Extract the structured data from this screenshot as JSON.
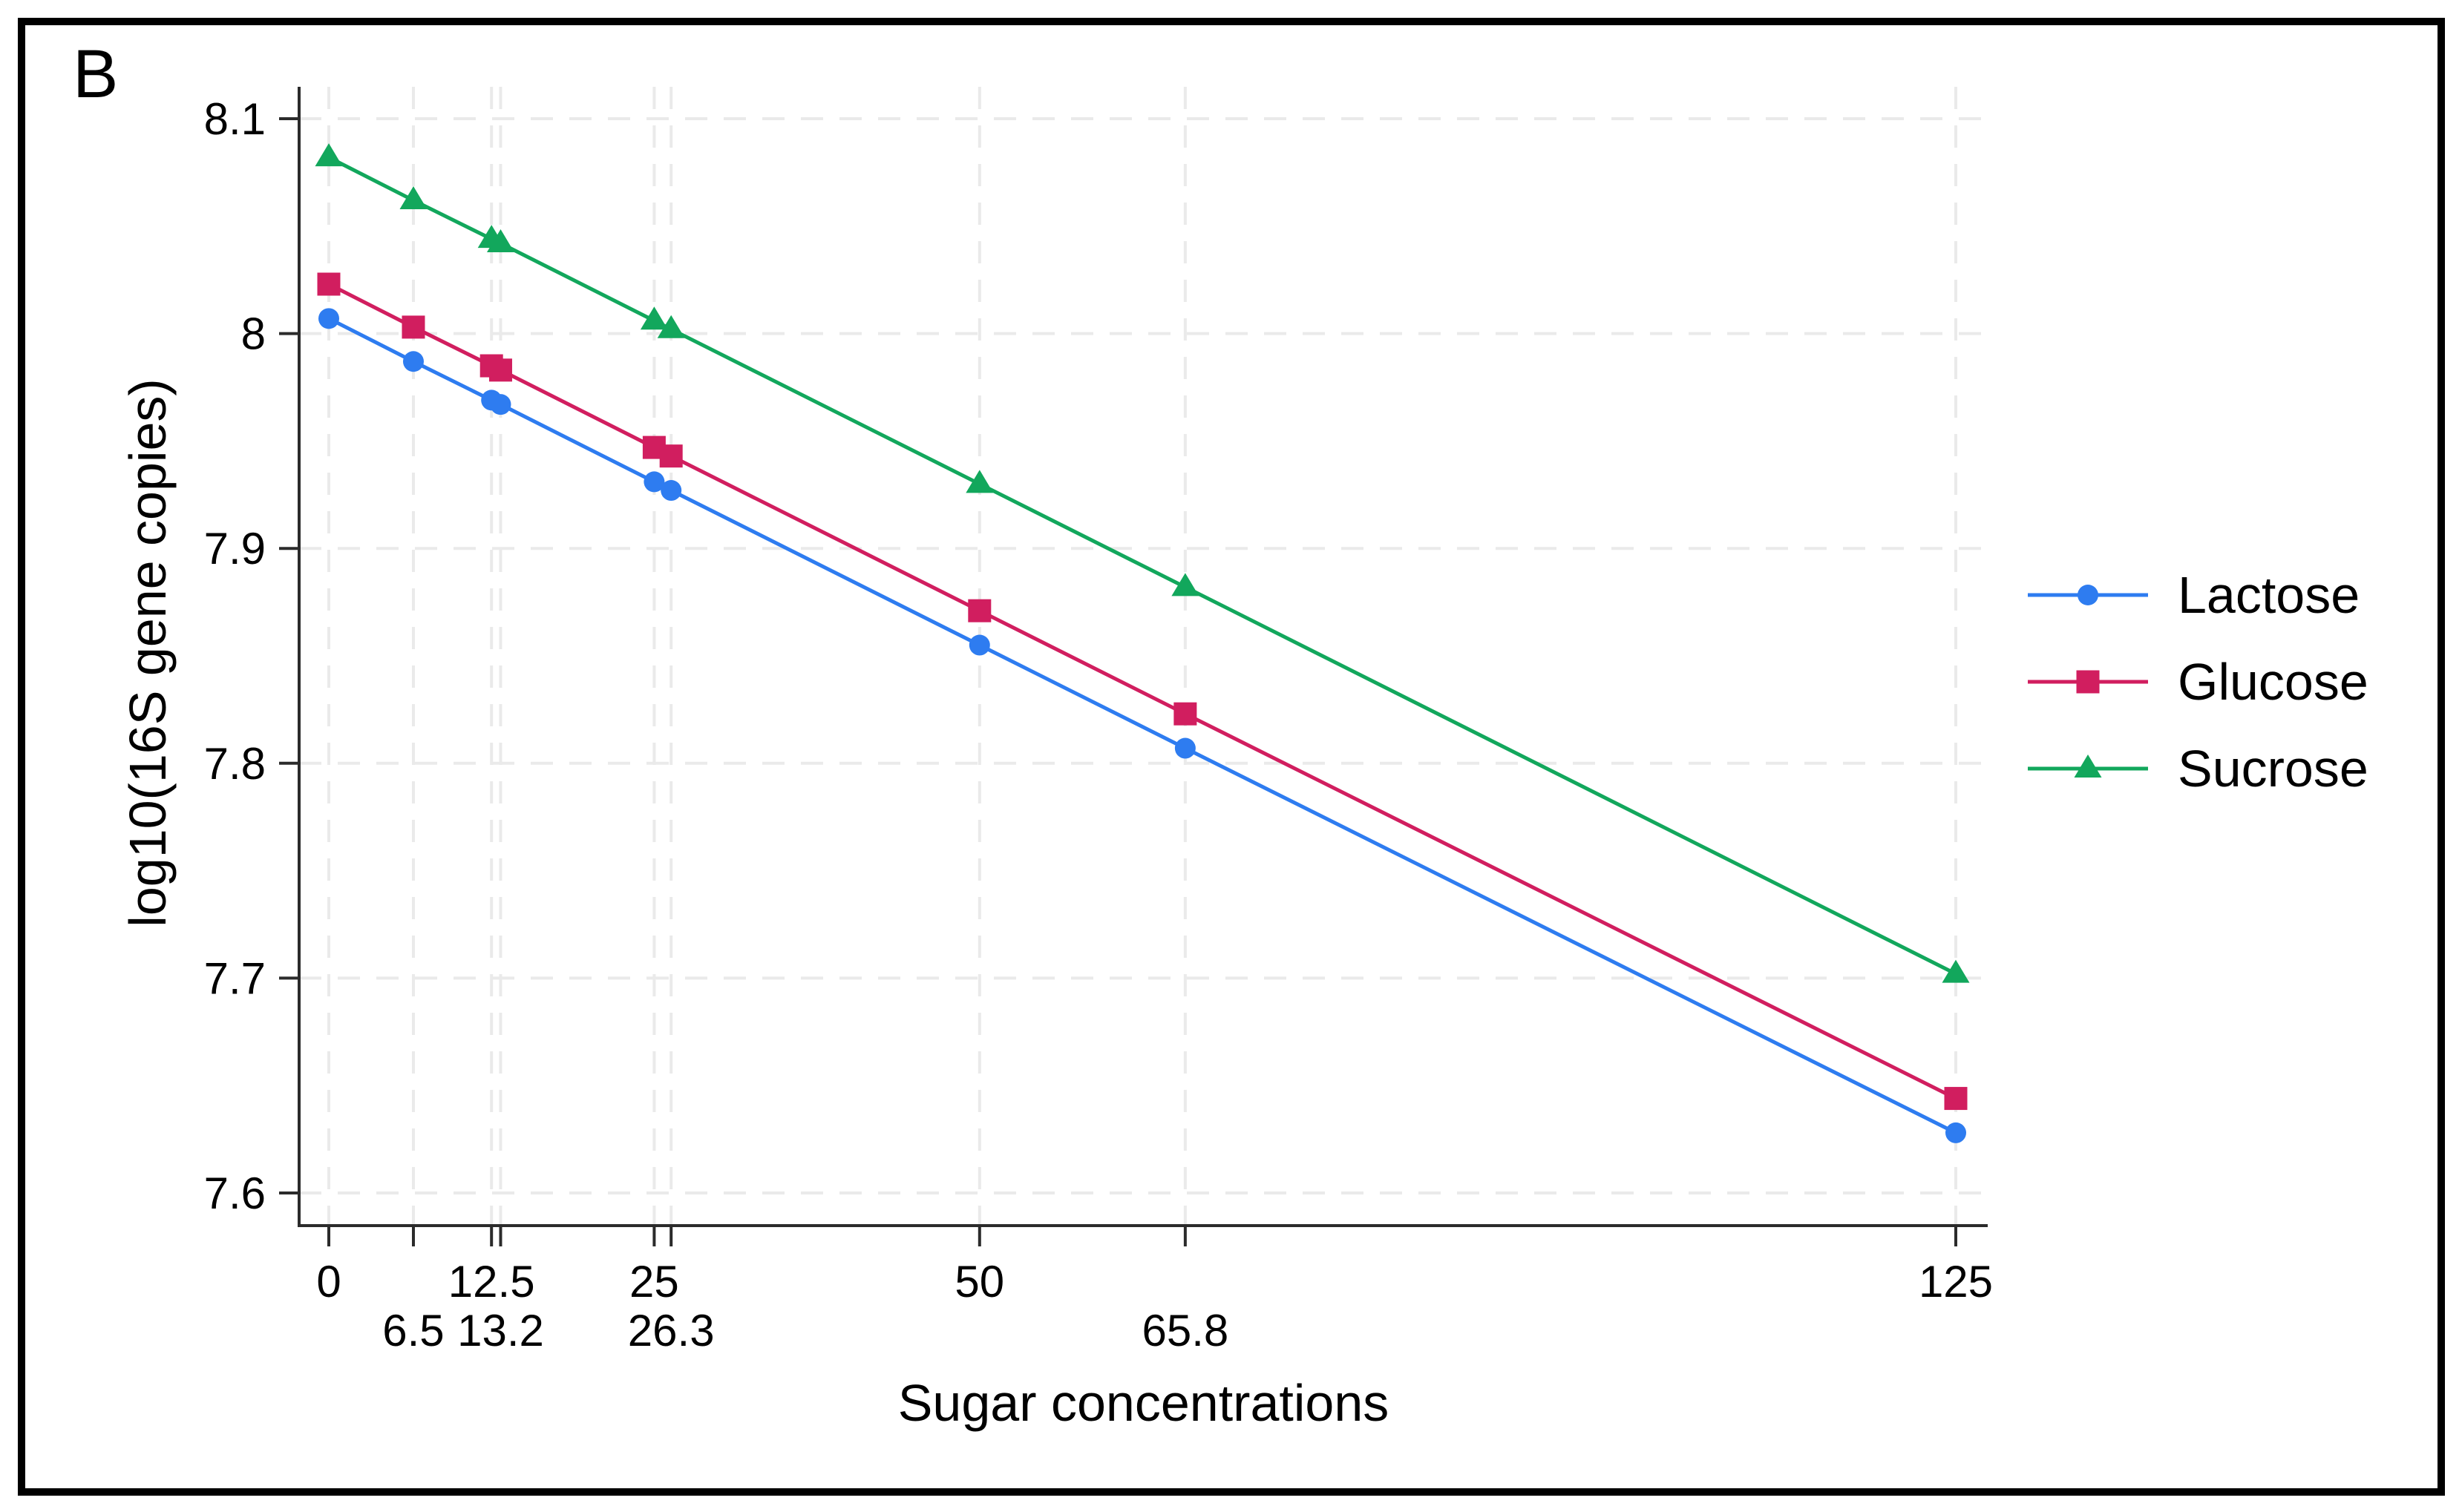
{
  "figure": {
    "panel_label": "B"
  },
  "chart_data": {
    "type": "line",
    "title": "",
    "xlabel": "Sugar concentrations",
    "ylabel": "log10(16S gene copies)",
    "grid": "both-dashed",
    "legend_position": "right-outside",
    "xlim": [
      -2.3,
      127.4
    ],
    "ylim": [
      7.585,
      8.115
    ],
    "x": [
      0,
      6.5,
      12.5,
      13.2,
      25,
      26.3,
      50,
      65.8,
      125
    ],
    "x_ticks": [
      {
        "value": 0,
        "label": "0",
        "row": 1
      },
      {
        "value": 6.5,
        "label": "6.5",
        "row": 2
      },
      {
        "value": 12.5,
        "label": "12.5",
        "row": 1
      },
      {
        "value": 13.2,
        "label": "13.2",
        "row": 2
      },
      {
        "value": 25,
        "label": "25",
        "row": 1
      },
      {
        "value": 26.3,
        "label": "26.3",
        "row": 2
      },
      {
        "value": 50,
        "label": "50",
        "row": 1
      },
      {
        "value": 65.8,
        "label": "65.8",
        "row": 2
      },
      {
        "value": 125,
        "label": "125",
        "row": 1
      }
    ],
    "y_ticks": [
      {
        "value": 8.1,
        "label": "8.1"
      },
      {
        "value": 8.0,
        "label": "8"
      },
      {
        "value": 7.9,
        "label": "7.9"
      },
      {
        "value": 7.8,
        "label": "7.8"
      },
      {
        "value": 7.7,
        "label": "7.7"
      },
      {
        "value": 7.6,
        "label": "7.6"
      }
    ],
    "series": [
      {
        "name": "Lactose",
        "marker": "circle",
        "color": "#2E7CF0",
        "values": [
          8.007,
          7.987,
          7.969,
          7.967,
          7.931,
          7.927,
          7.855,
          7.807,
          7.628
        ]
      },
      {
        "name": "Glucose",
        "marker": "square",
        "color": "#D11E5F",
        "values": [
          8.023,
          8.003,
          7.985,
          7.983,
          7.947,
          7.943,
          7.871,
          7.823,
          7.644
        ]
      },
      {
        "name": "Sucrose",
        "marker": "triangle",
        "color": "#12A75C",
        "values": [
          8.082,
          8.062,
          8.044,
          8.042,
          8.006,
          8.002,
          7.93,
          7.882,
          7.702
        ]
      }
    ],
    "colors": {
      "axis": "#2B2B2B",
      "grid": "#EAEAEA",
      "text": "#000000"
    }
  }
}
